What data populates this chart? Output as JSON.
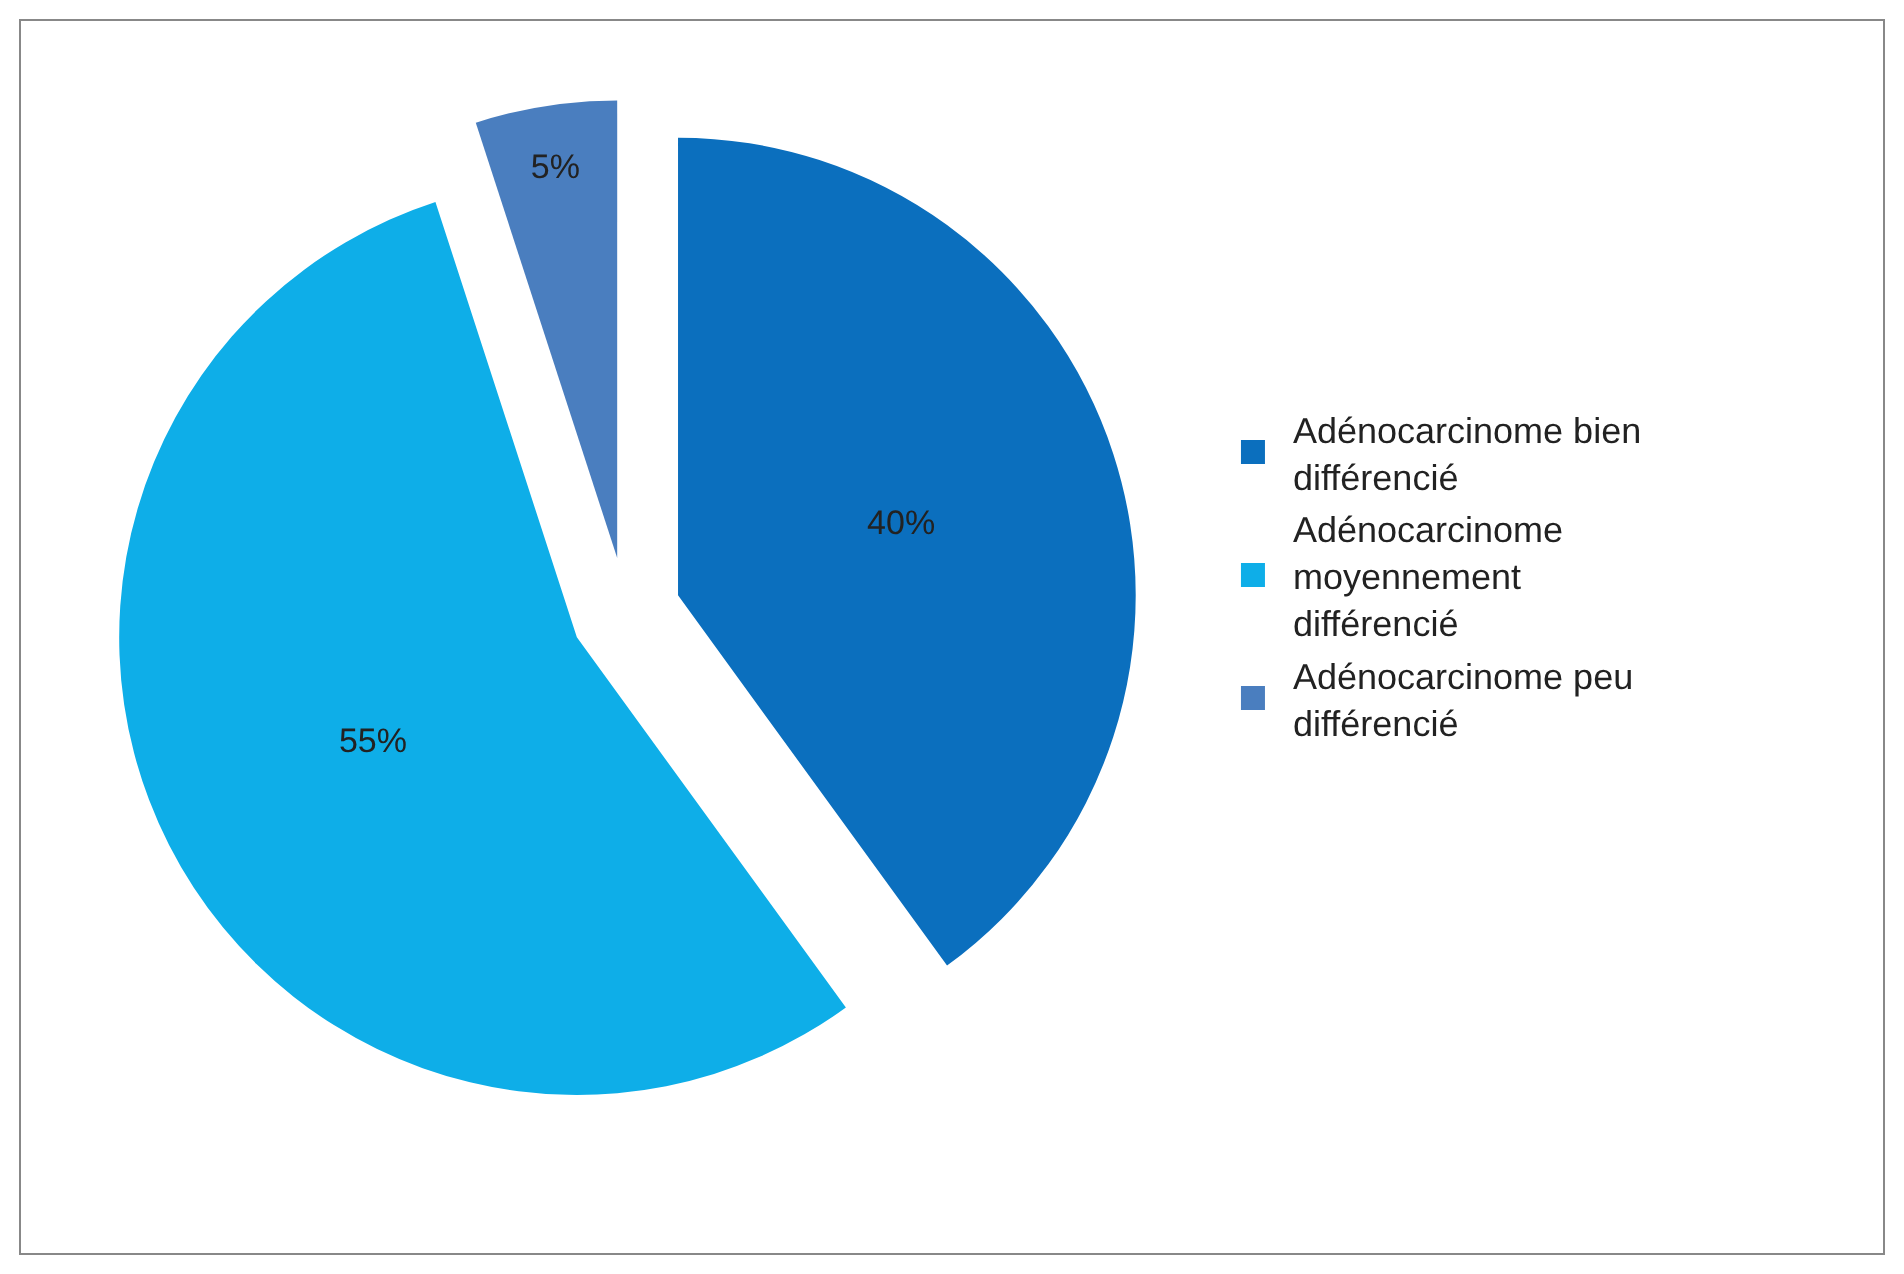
{
  "chart_data": {
    "type": "pie",
    "categories": [
      "Adénocarcinome bien différencié",
      "Adénocarcinome moyennement différencié",
      "Adénocarcinome peu différencié"
    ],
    "values": [
      40,
      55,
      5
    ],
    "value_labels": [
      "40%",
      "55%",
      "5%"
    ],
    "colors": [
      "#0b6fbe",
      "#0eaee8",
      "#4a7ebf"
    ],
    "legend": "right"
  }
}
